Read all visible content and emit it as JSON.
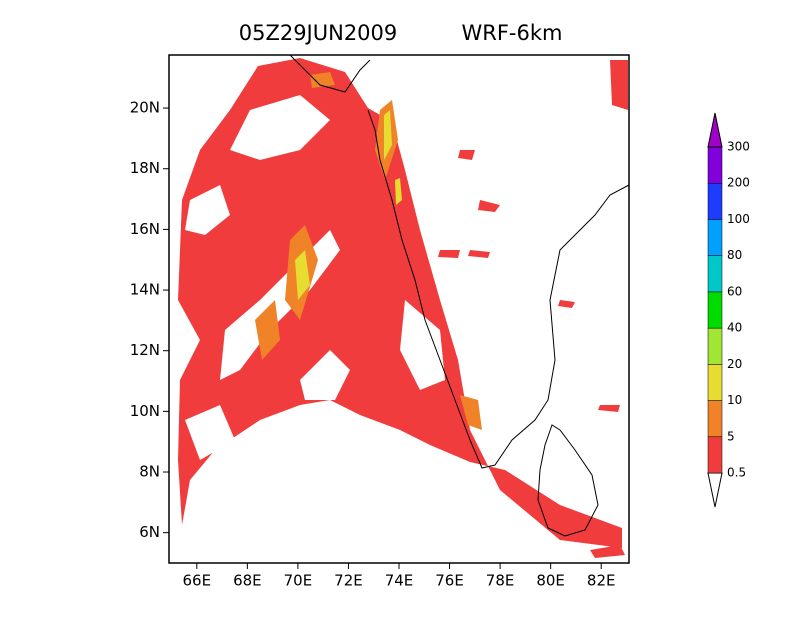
{
  "map": {
    "title": "05Z29JUN2009",
    "subtitle": "WRF-6km",
    "xlim": [
      64.9,
      83.1
    ],
    "ylim": [
      5.0,
      21.75
    ],
    "xticks": [
      {
        "value": 66,
        "label": "66E"
      },
      {
        "value": 68,
        "label": "68E"
      },
      {
        "value": 70,
        "label": "70E"
      },
      {
        "value": 72,
        "label": "72E"
      },
      {
        "value": 74,
        "label": "74E"
      },
      {
        "value": 76,
        "label": "76E"
      },
      {
        "value": 78,
        "label": "78E"
      },
      {
        "value": 80,
        "label": "80E"
      },
      {
        "value": 82,
        "label": "82E"
      }
    ],
    "yticks": [
      {
        "value": 6,
        "label": "6N"
      },
      {
        "value": 8,
        "label": "8N"
      },
      {
        "value": 10,
        "label": "10N"
      },
      {
        "value": 12,
        "label": "12N"
      },
      {
        "value": 14,
        "label": "14N"
      },
      {
        "value": 16,
        "label": "16N"
      },
      {
        "value": 18,
        "label": "18N"
      },
      {
        "value": 20,
        "label": "20N"
      }
    ],
    "colorbar": {
      "levels": [
        0.5,
        5,
        10,
        20,
        40,
        60,
        80,
        100,
        200,
        300
      ],
      "colors": [
        "#ffffff",
        "#f03c3c",
        "#f08228",
        "#e6dc32",
        "#a0e632",
        "#00dc00",
        "#00c8c8",
        "#00a0ff",
        "#1e3cff",
        "#8200dc",
        "#a000c8"
      ]
    }
  }
}
